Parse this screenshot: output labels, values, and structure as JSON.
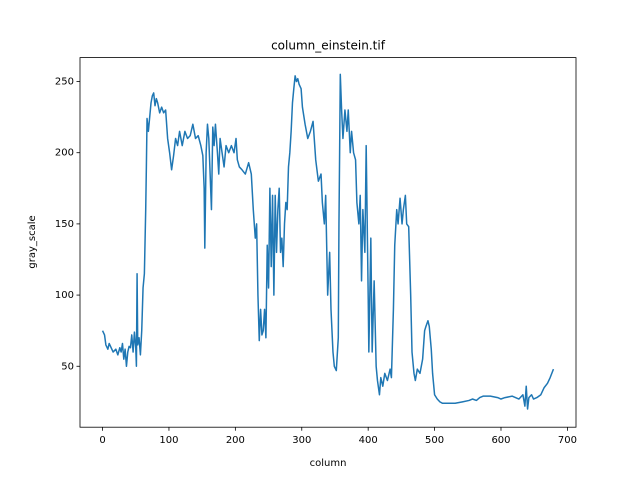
{
  "chart_data": {
    "type": "line",
    "title": "column_einstein.tif",
    "x_label": "column",
    "y_label": "gray_scale",
    "x": [
      0,
      3,
      5,
      8,
      10,
      13,
      16,
      20,
      23,
      26,
      28,
      30,
      32,
      34,
      36,
      38,
      40,
      42,
      44,
      46,
      48,
      50,
      51,
      52,
      53,
      55,
      57,
      59,
      61,
      63,
      65,
      66,
      67,
      69,
      71,
      73,
      75,
      77,
      79,
      81,
      83,
      86,
      89,
      92,
      95,
      98,
      101,
      104,
      107,
      110,
      113,
      116,
      120,
      124,
      128,
      132,
      136,
      140,
      144,
      148,
      151,
      153,
      154,
      156,
      158,
      160,
      162,
      164,
      166,
      168,
      170,
      173,
      175,
      177,
      180,
      183,
      186,
      190,
      194,
      198,
      201,
      203,
      206,
      210,
      215,
      220,
      224,
      227,
      230,
      232,
      234,
      236,
      238,
      240,
      242,
      244,
      246,
      248,
      250,
      252,
      254,
      256,
      258,
      260,
      262,
      264,
      266,
      268,
      270,
      272,
      274,
      276,
      278,
      280,
      282,
      284,
      286,
      288,
      290,
      292,
      294,
      296,
      299,
      301,
      305,
      309,
      313,
      317,
      321,
      325,
      329,
      331,
      334,
      336,
      339,
      342,
      344,
      347,
      349,
      352,
      355,
      356,
      357,
      358,
      360,
      362,
      365,
      368,
      370,
      373,
      375,
      378,
      381,
      383,
      386,
      388,
      390,
      392,
      395,
      397,
      400,
      401,
      404,
      406,
      409,
      412,
      414,
      417,
      419,
      422,
      425,
      429,
      433,
      435,
      438,
      440,
      443,
      445,
      448,
      451,
      453,
      456,
      458,
      461,
      464,
      466,
      469,
      471,
      474,
      478,
      482,
      485,
      487,
      490,
      492,
      495,
      497,
      500,
      504,
      508,
      512,
      520,
      531,
      542,
      552,
      557,
      563,
      568,
      573,
      584,
      595,
      600,
      606,
      617,
      627,
      633,
      636,
      638,
      640,
      642,
      646,
      649,
      654,
      660,
      665,
      670,
      674,
      679
    ],
    "series": [
      {
        "name": "gray_scale",
        "color": "#1f77b4",
        "values": [
          75,
          72,
          65,
          62,
          66,
          63,
          60,
          62,
          58,
          63,
          60,
          66,
          55,
          62,
          50,
          60,
          64,
          63,
          72,
          60,
          74,
          63,
          50,
          115,
          65,
          70,
          58,
          75,
          105,
          115,
          160,
          190,
          224,
          215,
          225,
          235,
          240,
          242,
          233,
          238,
          235,
          228,
          232,
          228,
          230,
          210,
          200,
          188,
          198,
          210,
          205,
          215,
          205,
          215,
          210,
          212,
          220,
          210,
          212,
          205,
          198,
          175,
          133,
          200,
          220,
          210,
          185,
          160,
          218,
          205,
          220,
          200,
          185,
          210,
          200,
          190,
          205,
          200,
          205,
          200,
          210,
          195,
          190,
          188,
          185,
          193,
          185,
          160,
          140,
          150,
          100,
          68,
          90,
          72,
          75,
          90,
          70,
          135,
          105,
          175,
          120,
          170,
          100,
          170,
          130,
          160,
          175,
          130,
          140,
          120,
          150,
          165,
          160,
          190,
          200,
          215,
          235,
          245,
          254,
          250,
          252,
          248,
          245,
          232,
          220,
          210,
          215,
          222,
          195,
          180,
          185,
          165,
          150,
          170,
          100,
          130,
          90,
          60,
          50,
          47,
          70,
          150,
          200,
          255,
          230,
          210,
          230,
          215,
          230,
          200,
          215,
          200,
          195,
          165,
          150,
          170,
          110,
          160,
          130,
          205,
          100,
          60,
          140,
          60,
          110,
          50,
          40,
          30,
          42,
          36,
          45,
          40,
          48,
          42,
          90,
          135,
          160,
          150,
          168,
          150,
          160,
          170,
          150,
          148,
          100,
          60,
          45,
          40,
          48,
          45,
          55,
          75,
          78,
          82,
          78,
          62,
          45,
          30,
          27,
          25,
          24,
          24,
          24,
          25,
          26,
          27,
          26,
          28,
          29,
          29,
          28,
          27,
          28,
          29,
          27,
          30,
          22,
          36,
          20,
          28,
          30,
          27,
          28,
          30,
          35,
          38,
          42,
          48
        ]
      }
    ],
    "xlim": [
      -33.95,
      712.95
    ],
    "ylim": [
      7.2,
      266.8
    ],
    "xticks": [
      0,
      100,
      200,
      300,
      400,
      500,
      600,
      700
    ],
    "yticks": [
      50,
      100,
      150,
      200,
      250
    ]
  }
}
